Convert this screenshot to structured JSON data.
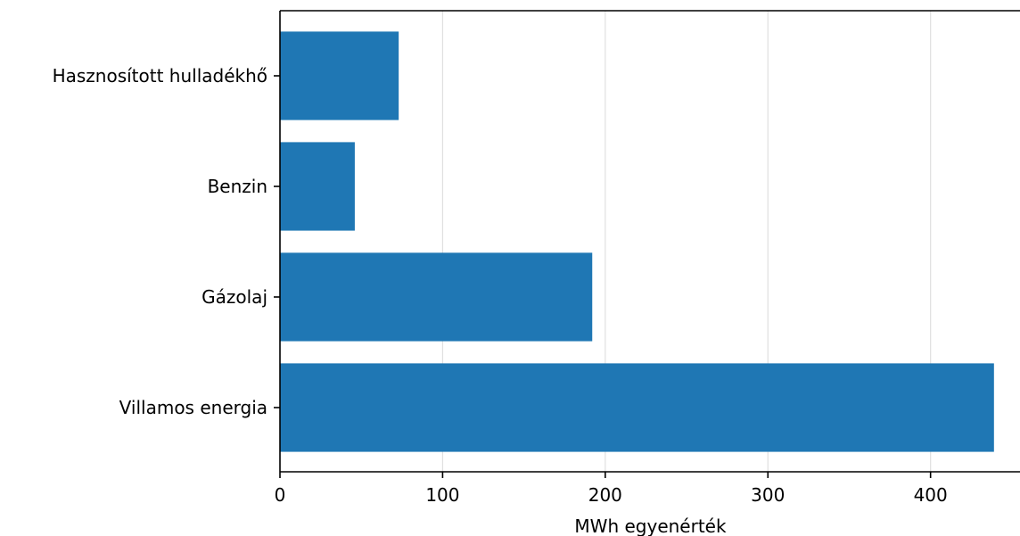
{
  "chart_data": {
    "type": "bar",
    "orientation": "horizontal",
    "title": "",
    "xlabel": "MWh egyenérték",
    "ylabel": "",
    "categories": [
      "Villamos energia",
      "Gázolaj",
      "Benzin",
      "Hasznosított hulladékhő"
    ],
    "values": [
      439,
      192,
      46,
      73
    ],
    "xlim": [
      0,
      455
    ],
    "xticks": [
      0,
      100,
      200,
      300,
      400
    ],
    "xtick_labels": [
      "0",
      "100",
      "200",
      "300",
      "400"
    ],
    "grid": "x-major",
    "bar_color": "#1f77b4",
    "grid_color": "#e0e0e0"
  }
}
